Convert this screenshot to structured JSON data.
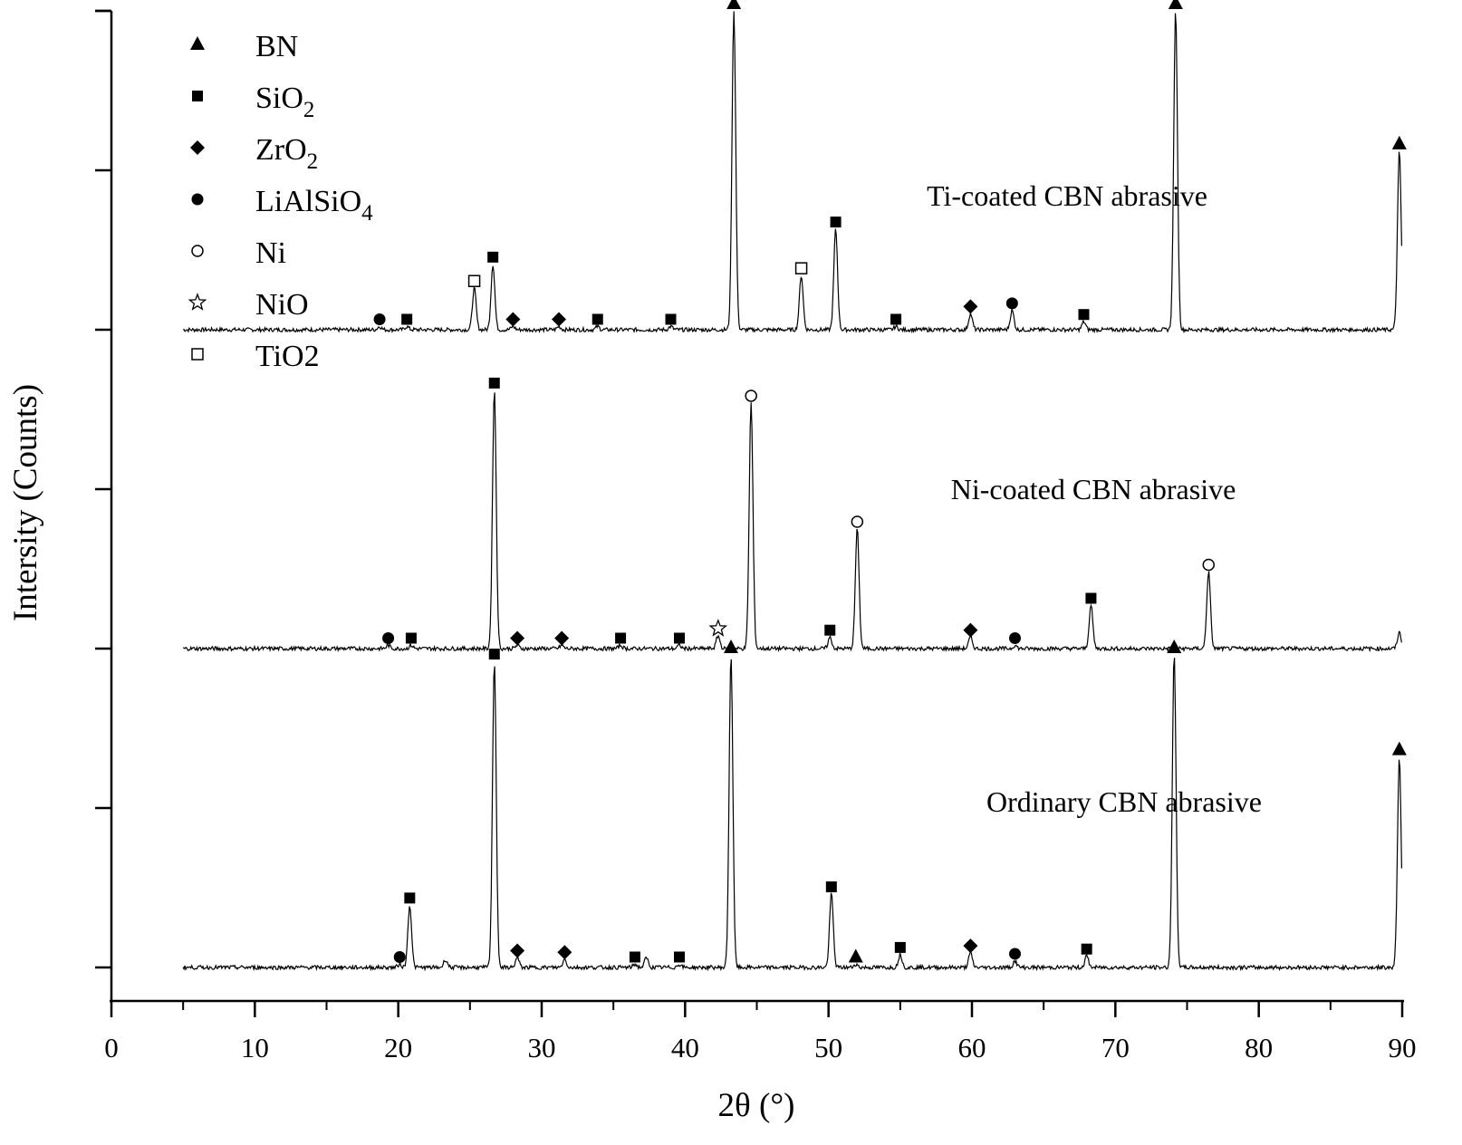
{
  "chart_data": {
    "type": "line",
    "xlabel": "2θ (°)",
    "ylabel": "Intersity (Counts)",
    "xlim": [
      0,
      90
    ],
    "x_ticks": [
      "0",
      "10",
      "20",
      "30",
      "40",
      "50",
      "60",
      "70",
      "80",
      "90"
    ],
    "y_tick_labels": "none",
    "grid": false,
    "legend_position": "top-left",
    "legend": [
      {
        "symbol": "filled-triangle",
        "label": "BN",
        "sub": ""
      },
      {
        "symbol": "filled-square",
        "label": "SiO",
        "sub": "2"
      },
      {
        "symbol": "filled-diamond",
        "label": "ZrO",
        "sub": "2"
      },
      {
        "symbol": "filled-circle",
        "label": "LiAlSiO",
        "sub": "4"
      },
      {
        "symbol": "open-circle",
        "label": "Ni",
        "sub": ""
      },
      {
        "symbol": "open-star",
        "label": "NiO",
        "sub": ""
      },
      {
        "symbol": "open-square",
        "label": "TiO2",
        "sub": ""
      }
    ],
    "series": [
      {
        "name": "Ti-coated CBN abrasive",
        "offset": 4,
        "x_range": [
          5,
          90
        ],
        "peaks": [
          {
            "x": 18.7,
            "h": 0.02,
            "marker": "filled-circle"
          },
          {
            "x": 20.6,
            "h": 0.02,
            "marker": "filled-square"
          },
          {
            "x": 25.3,
            "h": 0.26,
            "marker": "open-square"
          },
          {
            "x": 26.6,
            "h": 0.41,
            "marker": "filled-square"
          },
          {
            "x": 28.0,
            "h": 0.02,
            "marker": "filled-diamond"
          },
          {
            "x": 31.2,
            "h": 0.02,
            "marker": "filled-diamond"
          },
          {
            "x": 33.9,
            "h": 0.02,
            "marker": "filled-square"
          },
          {
            "x": 39.0,
            "h": 0.02,
            "marker": "filled-square"
          },
          {
            "x": 43.4,
            "h": 2.0,
            "marker": "filled-triangle"
          },
          {
            "x": 48.1,
            "h": 0.34,
            "marker": "open-square"
          },
          {
            "x": 50.5,
            "h": 0.63,
            "marker": "filled-square"
          },
          {
            "x": 54.7,
            "h": 0.02,
            "marker": "filled-square"
          },
          {
            "x": 59.9,
            "h": 0.1,
            "marker": "filled-diamond"
          },
          {
            "x": 62.8,
            "h": 0.12,
            "marker": "filled-circle"
          },
          {
            "x": 67.8,
            "h": 0.05,
            "marker": "filled-square"
          },
          {
            "x": 74.2,
            "h": 2.0,
            "marker": "filled-triangle"
          },
          {
            "x": 89.8,
            "h": 1.12,
            "marker": "filled-triangle"
          }
        ]
      },
      {
        "name": "Ni-coated CBN abrasive",
        "offset": 2,
        "x_range": [
          5,
          90
        ],
        "peaks": [
          {
            "x": 19.3,
            "h": 0.02,
            "marker": "filled-circle"
          },
          {
            "x": 20.9,
            "h": 0.02,
            "marker": "filled-square"
          },
          {
            "x": 26.7,
            "h": 1.62,
            "marker": "filled-square"
          },
          {
            "x": 28.3,
            "h": 0.02,
            "marker": "filled-diamond"
          },
          {
            "x": 31.4,
            "h": 0.02,
            "marker": "filled-diamond"
          },
          {
            "x": 35.5,
            "h": 0.02,
            "marker": "filled-square"
          },
          {
            "x": 39.6,
            "h": 0.02,
            "marker": "filled-square"
          },
          {
            "x": 42.3,
            "h": 0.08,
            "marker": "open-star"
          },
          {
            "x": 44.6,
            "h": 1.54,
            "marker": "open-circle"
          },
          {
            "x": 50.1,
            "h": 0.07,
            "marker": "filled-square"
          },
          {
            "x": 52.0,
            "h": 0.75,
            "marker": "open-circle"
          },
          {
            "x": 59.9,
            "h": 0.07,
            "marker": "filled-diamond"
          },
          {
            "x": 63.0,
            "h": 0.02,
            "marker": "filled-circle"
          },
          {
            "x": 68.3,
            "h": 0.27,
            "marker": "filled-square"
          },
          {
            "x": 76.5,
            "h": 0.48,
            "marker": "open-circle"
          },
          {
            "x": 89.8,
            "h": 0.1,
            "marker": ""
          }
        ]
      },
      {
        "name": "Ordinary CBN abrasive",
        "offset": 0,
        "x_range": [
          5,
          90
        ],
        "peaks": [
          {
            "x": 20.1,
            "h": 0.02,
            "marker": "filled-circle"
          },
          {
            "x": 20.8,
            "h": 0.39,
            "marker": "filled-square"
          },
          {
            "x": 23.3,
            "h": 0.05,
            "marker": ""
          },
          {
            "x": 26.7,
            "h": 1.92,
            "marker": "filled-square"
          },
          {
            "x": 28.3,
            "h": 0.06,
            "marker": "filled-diamond"
          },
          {
            "x": 31.6,
            "h": 0.05,
            "marker": "filled-diamond"
          },
          {
            "x": 36.5,
            "h": 0.02,
            "marker": "filled-square"
          },
          {
            "x": 37.3,
            "h": 0.06,
            "marker": ""
          },
          {
            "x": 39.6,
            "h": 0.02,
            "marker": "filled-square"
          },
          {
            "x": 43.2,
            "h": 1.96,
            "marker": "filled-triangle"
          },
          {
            "x": 50.2,
            "h": 0.46,
            "marker": "filled-square"
          },
          {
            "x": 51.9,
            "h": 0.02,
            "marker": "filled-triangle"
          },
          {
            "x": 55.0,
            "h": 0.08,
            "marker": "filled-square"
          },
          {
            "x": 59.9,
            "h": 0.09,
            "marker": "filled-diamond"
          },
          {
            "x": 63.0,
            "h": 0.04,
            "marker": "filled-circle"
          },
          {
            "x": 68.0,
            "h": 0.07,
            "marker": "filled-square"
          },
          {
            "x": 74.1,
            "h": 1.96,
            "marker": "filled-triangle"
          },
          {
            "x": 89.8,
            "h": 1.32,
            "marker": "filled-triangle"
          }
        ]
      }
    ]
  }
}
